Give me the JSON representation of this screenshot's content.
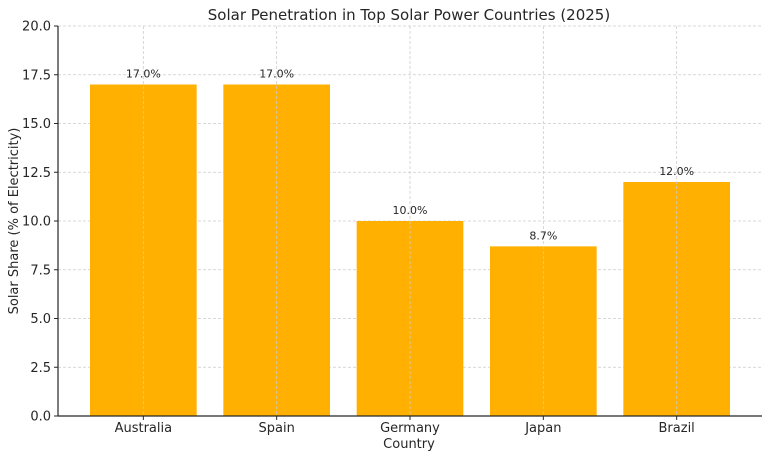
{
  "chart_data": {
    "type": "bar",
    "title": "Solar Penetration in Top Solar Power Countries (2025)",
    "xlabel": "Country",
    "ylabel": "Solar Share (% of Electricity)",
    "categories": [
      "Australia",
      "Spain",
      "Germany",
      "Japan",
      "Brazil"
    ],
    "values": [
      17.0,
      17.0,
      10.0,
      8.7,
      12.0
    ],
    "data_labels": [
      "17.0%",
      "17.0%",
      "10.0%",
      "8.7%",
      "12.0%"
    ],
    "ylim": [
      0,
      20
    ],
    "yticks": [
      "0.0",
      "2.5",
      "5.0",
      "7.5",
      "10.0",
      "12.5",
      "15.0",
      "17.5",
      "20.0"
    ],
    "grid": true,
    "bar_color": "#FFB000"
  }
}
